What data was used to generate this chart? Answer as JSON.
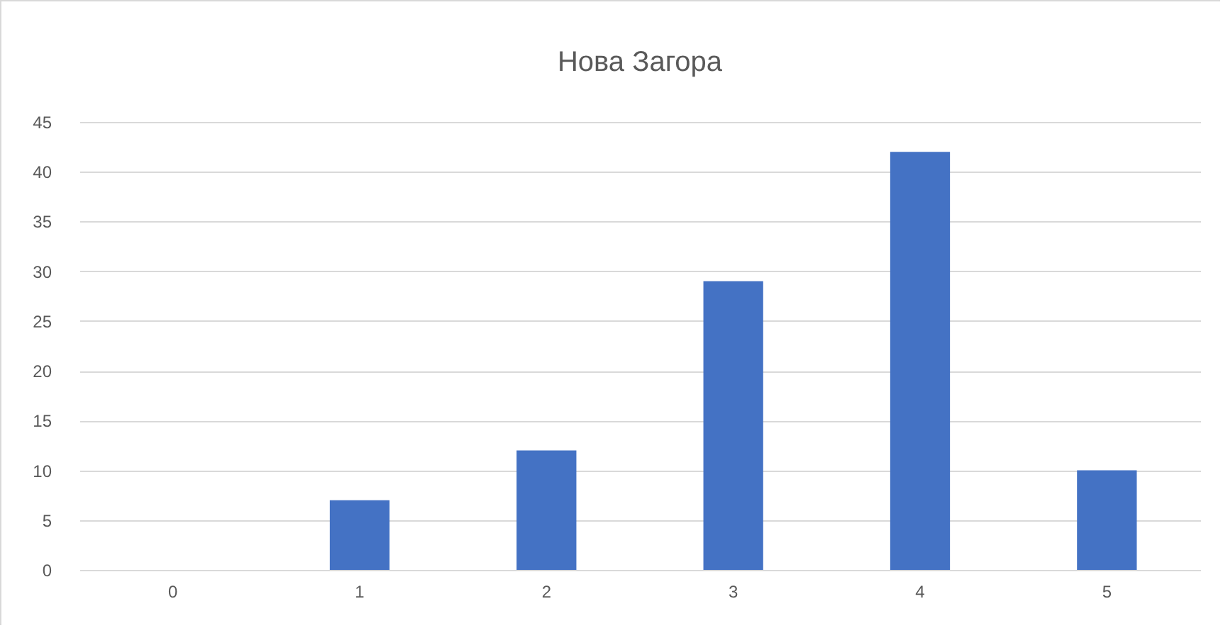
{
  "chart_data": {
    "type": "bar",
    "title": "Нова Загора",
    "categories": [
      "0",
      "1",
      "2",
      "3",
      "4",
      "5"
    ],
    "values": [
      0,
      7,
      12,
      29,
      42,
      10
    ],
    "color": "#4472c4",
    "ylim": [
      0,
      45
    ],
    "yticks": [
      0,
      5,
      10,
      15,
      20,
      25,
      30,
      35,
      40,
      45
    ],
    "grid": "y"
  }
}
